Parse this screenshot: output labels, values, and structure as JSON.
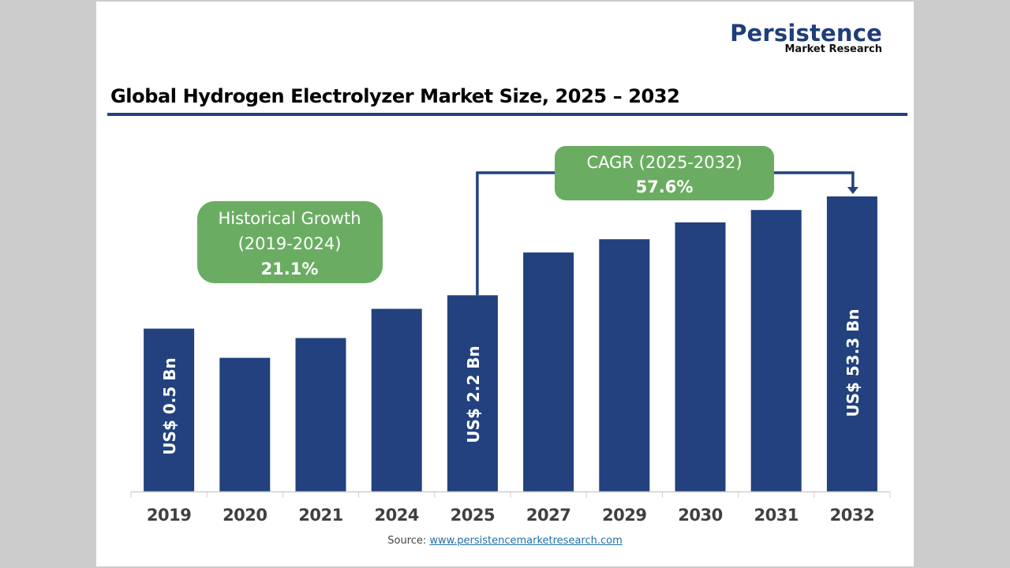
{
  "logo": {
    "brand": "Persistence",
    "sub": "Market Research"
  },
  "chart_data": {
    "type": "bar",
    "title": "Global Hydrogen Electrolyzer Market Size, 2025 – 2032",
    "categories": [
      "2019",
      "2020",
      "2021",
      "2024",
      "2025",
      "2027",
      "2029",
      "2030",
      "2031",
      "2032"
    ],
    "relative_heights": [
      0.552,
      0.453,
      0.52,
      0.619,
      0.665,
      0.81,
      0.855,
      0.912,
      0.954,
      1.0
    ],
    "value_labels": {
      "2019": "US$ 0.5 Bn",
      "2025": "US$ 2.2 Bn",
      "2032": "US$ 53.3 Bn"
    },
    "values_bn": {
      "2019": 0.5,
      "2025": 2.2,
      "2032": 53.3
    },
    "bar_color": "#22417e",
    "xlabel": "",
    "ylabel": "",
    "grid": false,
    "annotations": {
      "historical": {
        "line1": "Historical Growth",
        "line2": "(2019-2024)",
        "value": "21.1%",
        "color": "#6aad62"
      },
      "cagr": {
        "line1": "CAGR (2025-2032)",
        "value": "57.6%",
        "from": "2025",
        "to": "2032",
        "color": "#6aad62"
      }
    }
  },
  "source": {
    "label": "Source: ",
    "link": "www.persistencemarketresearch.com"
  }
}
